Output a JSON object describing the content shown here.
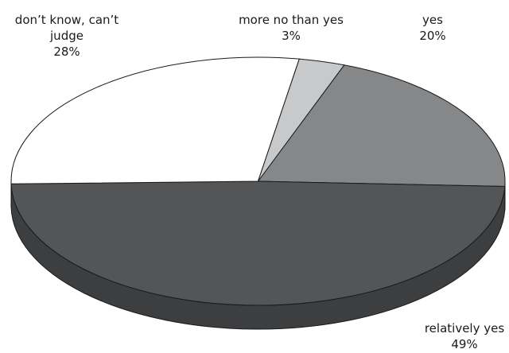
{
  "chart_data": {
    "type": "pie",
    "style": "3d",
    "categories": [
      "yes",
      "relatively yes",
      "don't know, can't judge",
      "more no than yes"
    ],
    "values": [
      20,
      49,
      28,
      3
    ],
    "value_labels": [
      "20%",
      "49%",
      "28%",
      "3%"
    ],
    "label_lines": [
      [
        "yes"
      ],
      [
        "relatively yes"
      ],
      [
        "don’t know, can’t",
        "judge"
      ],
      [
        "more no than yes"
      ]
    ],
    "colors": [
      "#868789",
      "#545557",
      "#ffffff",
      "#c8c9cb"
    ],
    "side_colors": [
      "#5f6062",
      "#3d3e40",
      "#d6d6d6",
      "#9fa0a2"
    ],
    "legend": "none"
  }
}
